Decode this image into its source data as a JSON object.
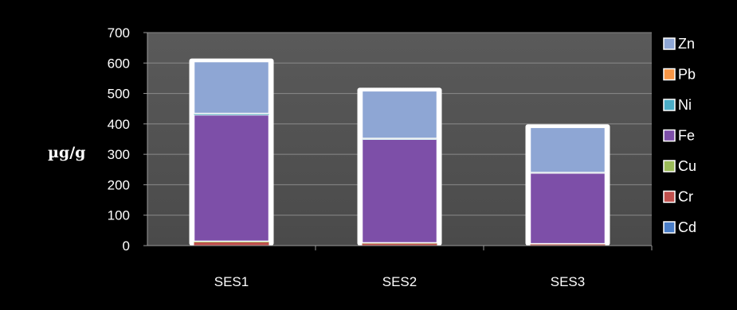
{
  "chart_data": {
    "type": "bar",
    "stacked": true,
    "ylabel": "µg/g",
    "xlabel": "",
    "ylim": [
      0,
      700
    ],
    "yticks": [
      "0",
      "100",
      "200",
      "300",
      "400",
      "500",
      "600",
      "700"
    ],
    "categories": [
      "SES1",
      "SES2",
      "SES3"
    ],
    "grid": true,
    "legend_position": "right",
    "series": [
      {
        "name": "Cd",
        "color": "#4a7ec8",
        "values": [
          0.5,
          0.4,
          0.3
        ]
      },
      {
        "name": "Cr",
        "color": "#c0504d",
        "values": [
          10,
          6,
          4
        ]
      },
      {
        "name": "Cu",
        "color": "#9bbb59",
        "values": [
          4,
          3,
          2
        ]
      },
      {
        "name": "Fe",
        "color": "#7d4fa8",
        "values": [
          415,
          340,
          232
        ]
      },
      {
        "name": "Ni",
        "color": "#4bacc6",
        "values": [
          3,
          2,
          1
        ]
      },
      {
        "name": "Pb",
        "color": "#f79646",
        "values": [
          2,
          1,
          1
        ]
      },
      {
        "name": "Zn",
        "color": "#8ea6d4",
        "values": [
          170,
          156,
          148
        ]
      }
    ],
    "legend_order": [
      "Zn",
      "Pb",
      "Ni",
      "Fe",
      "Cu",
      "Cr",
      "Cd"
    ]
  }
}
